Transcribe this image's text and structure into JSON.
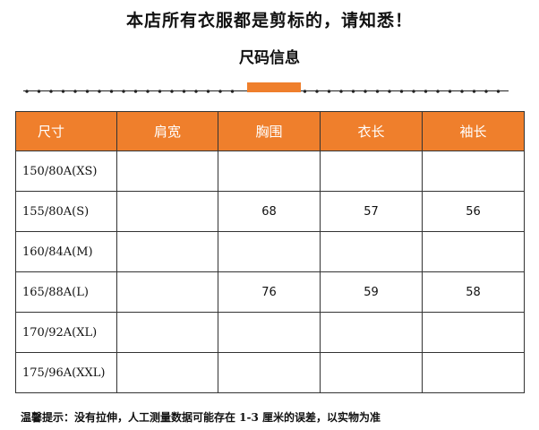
{
  "notice": "本店所有衣服都是剪标的，请知悉！",
  "section_title": "尺码信息",
  "table": {
    "headers": [
      "尺寸",
      "肩宽",
      "胸围",
      "衣长",
      "袖长"
    ],
    "rows": [
      [
        "150/80A(XS)",
        "",
        "",
        "",
        ""
      ],
      [
        "155/80A(S)",
        "",
        "68",
        "57",
        "56"
      ],
      [
        "160/84A(M)",
        "",
        "",
        "",
        ""
      ],
      [
        "165/88A(L)",
        "",
        "76",
        "59",
        "58"
      ],
      [
        "170/92A(XL)",
        "",
        "",
        "",
        ""
      ],
      [
        "175/96A(XXL)",
        "",
        "",
        "",
        ""
      ]
    ]
  },
  "tip": "温馨提示：没有拉伸，人工测量数据可能存在 1-3 厘米的误差，以实物为准",
  "colors": {
    "accent": "#ef7f2c",
    "text": "#111111",
    "border": "#333333"
  }
}
